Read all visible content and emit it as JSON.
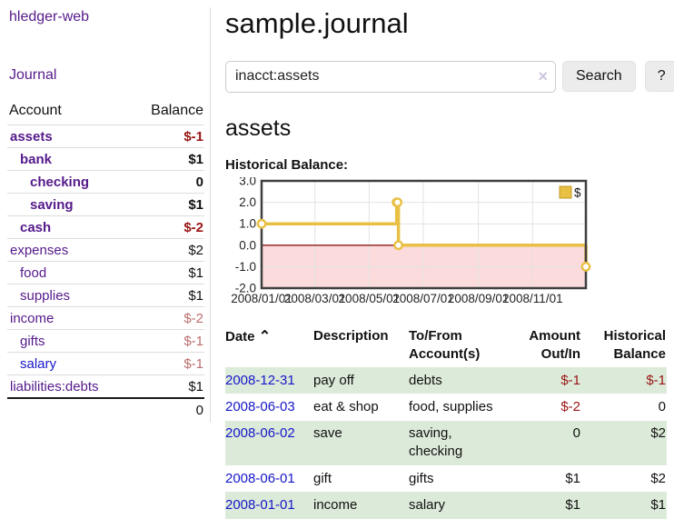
{
  "app": {
    "brand": "hledger-web",
    "nav_journal": "Journal"
  },
  "sidebar": {
    "header": {
      "account": "Account",
      "balance": "Balance"
    },
    "accounts": [
      {
        "name": "assets",
        "balance": "$-1",
        "depth": 0,
        "bold": true,
        "negative": true
      },
      {
        "name": "bank",
        "balance": "$1",
        "depth": 1,
        "bold": true,
        "negative": false
      },
      {
        "name": "checking",
        "balance": "0",
        "depth": 2,
        "bold": true,
        "negative": false
      },
      {
        "name": "saving",
        "balance": "$1",
        "depth": 2,
        "bold": true,
        "negative": false
      },
      {
        "name": "cash",
        "balance": "$-2",
        "depth": 1,
        "bold": true,
        "negative": true
      },
      {
        "name": "expenses",
        "balance": "$2",
        "depth": 0,
        "bold": false,
        "negative": false
      },
      {
        "name": "food",
        "balance": "$1",
        "depth": 1,
        "bold": false,
        "negative": false
      },
      {
        "name": "supplies",
        "balance": "$1",
        "depth": 1,
        "bold": false,
        "negative": false
      },
      {
        "name": "income",
        "balance": "$-2",
        "depth": 0,
        "bold": false,
        "negative": true
      },
      {
        "name": "gifts",
        "balance": "$-1",
        "depth": 1,
        "bold": false,
        "negative": true
      },
      {
        "name": "salary",
        "balance": "$-1",
        "depth": 1,
        "bold": false,
        "negative": true,
        "blue": true
      },
      {
        "name": "liabilities:debts",
        "balance": "$1",
        "depth": 0,
        "bold": false,
        "negative": false
      }
    ],
    "total": "0"
  },
  "header": {
    "title": "sample.journal"
  },
  "search": {
    "value": "inacct:assets",
    "clear_icon": "×",
    "button_label": "Search",
    "help_label": "?"
  },
  "account_page": {
    "heading": "assets",
    "chart_label": "Historical Balance:"
  },
  "chart_data": {
    "type": "line",
    "step": true,
    "title": "Historical Balance",
    "series": [
      {
        "name": "$",
        "color": "#e8c044",
        "points": [
          [
            "2008-01-01",
            1
          ],
          [
            "2008-06-01",
            2
          ],
          [
            "2008-06-02",
            2
          ],
          [
            "2008-06-03",
            0
          ],
          [
            "2008-12-31",
            -1
          ]
        ]
      }
    ],
    "ylim": [
      -2.0,
      3.0
    ],
    "yticks": [
      "3.0",
      "2.0",
      "1.0",
      "0.0",
      "-1.0",
      "-2.0"
    ],
    "xticks": [
      "2008/01/01",
      "2008/03/01",
      "2008/05/01",
      "2008/07/01",
      "2008/09/01",
      "2008/11/01"
    ],
    "x_start": "2008-01-01",
    "x_end": "2008-12-31",
    "grid": true,
    "legend_position": "top-right",
    "legend_label": "$",
    "negative_region_color": "#fbdbdb",
    "zero_line_color": "#8b1a1a",
    "border_color": "#3f3f3f",
    "grid_color": "#e3e3e3"
  },
  "register": {
    "headers": {
      "date": "Date",
      "sort_indicator": "⌃",
      "description": "Description",
      "accounts_line1": "To/From",
      "accounts_line2": "Account(s)",
      "amount_line1": "Amount",
      "amount_line2": "Out/In",
      "balance_line1": "Historical",
      "balance_line2": "Balance"
    },
    "rows": [
      {
        "date": "2008-12-31",
        "description": "pay off",
        "accounts": "debts",
        "amount": "$-1",
        "amount_negative": true,
        "balance": "$-1",
        "balance_negative": true
      },
      {
        "date": "2008-06-03",
        "description": "eat & shop",
        "accounts": "food, supplies",
        "amount": "$-2",
        "amount_negative": true,
        "balance": "0",
        "balance_negative": false
      },
      {
        "date": "2008-06-02",
        "description": "save",
        "accounts": "saving, checking",
        "amount": "0",
        "amount_negative": false,
        "balance": "$2",
        "balance_negative": false
      },
      {
        "date": "2008-06-01",
        "description": "gift",
        "accounts": "gifts",
        "amount": "$1",
        "amount_negative": false,
        "balance": "$2",
        "balance_negative": false
      },
      {
        "date": "2008-01-01",
        "description": "income",
        "accounts": "salary",
        "amount": "$1",
        "amount_negative": false,
        "balance": "$1",
        "balance_negative": false
      }
    ]
  }
}
